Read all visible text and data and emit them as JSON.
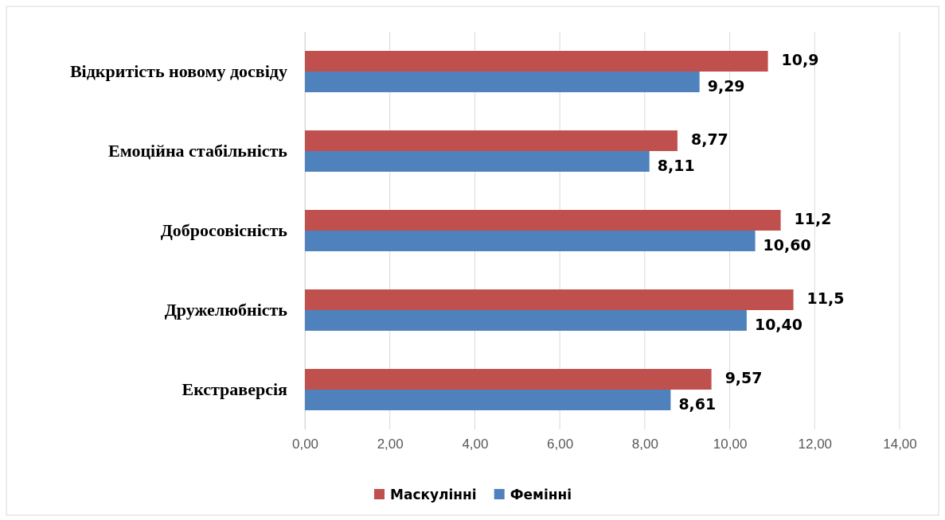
{
  "chart_data": {
    "type": "bar",
    "orientation": "horizontal",
    "categories": [
      "Відкритість новому досвіду",
      "Емоційна стабільність",
      "Добросовісність",
      "Дружелюбність",
      "Екстраверсія"
    ],
    "series": [
      {
        "name": "Маскулінні",
        "color": "#c0504d",
        "values": [
          10.9,
          8.77,
          11.2,
          11.5,
          9.57
        ],
        "value_labels": [
          "10,9",
          "8,77",
          "11,2",
          "11,5",
          "9,57"
        ]
      },
      {
        "name": "Фемінні",
        "color": "#4f81bd",
        "values": [
          9.29,
          8.11,
          10.6,
          10.4,
          8.61
        ],
        "value_labels": [
          "9,29",
          "8,11",
          "10,60",
          "10,40",
          "8,61"
        ]
      }
    ],
    "xlim": [
      0,
      14
    ],
    "xticks": [
      {
        "value": 0,
        "label": "0,00"
      },
      {
        "value": 2,
        "label": "2,00"
      },
      {
        "value": 4,
        "label": "4,00"
      },
      {
        "value": 6,
        "label": "6,00"
      },
      {
        "value": 8,
        "label": "8,00"
      },
      {
        "value": 10,
        "label": "10,00"
      },
      {
        "value": 12,
        "label": "12,00"
      },
      {
        "value": 14,
        "label": "14,00"
      }
    ],
    "grid": "x",
    "legend": "bottom"
  }
}
